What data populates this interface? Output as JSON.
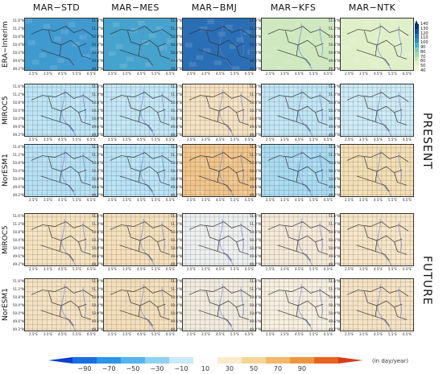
{
  "columns": [
    "MAR−STD",
    "MAR−MES",
    "MAR−BMJ",
    "MAR−KFS",
    "MAR−NTK"
  ],
  "rows": [
    "ERA−Interim",
    "MIROC5",
    "NorESM1",
    "MIROC5",
    "NorESM1"
  ],
  "sections": {
    "present": "PRESENT",
    "future": "FUTURE"
  },
  "lat_labels": [
    "51.6°N",
    "51.2°N",
    "50.8°N",
    "50.4°N",
    "50.0°N",
    "49.6°N",
    "49.2°N"
  ],
  "lon_labels": [
    "2.5°E",
    "3.5°E",
    "4.5°E",
    "5.5°E",
    "6.5°E"
  ],
  "right_colorbar": {
    "ticks": [
      "140",
      "130",
      "120",
      "110",
      "100",
      "90",
      "80",
      "70",
      "60",
      "50",
      "40"
    ],
    "colors": [
      "#08306b",
      "#08519c",
      "#2171b5",
      "#2b8cbe",
      "#41b6c4",
      "#7fcdbb",
      "#a6dba0",
      "#c7e9b4",
      "#e3f4c6",
      "#f7fcd4"
    ]
  },
  "bottom_colorbar": {
    "ticks": [
      "−90",
      "−70",
      "−50",
      "−30",
      "−10",
      "10",
      "30",
      "50",
      "70",
      "90"
    ],
    "colors": [
      "#0b3fcf",
      "#1a6fe0",
      "#2b95e8",
      "#55b4ee",
      "#8fd0f2",
      "#c9eaf7",
      "#ffffff",
      "#fbeacc",
      "#f5d596",
      "#f2b866",
      "#ef9640",
      "#e9631f",
      "#d93a1c"
    ],
    "unit": "(in day/year)"
  },
  "panel_fills": [
    [
      "#3f9ad0",
      "#46a3cd",
      "#2a6fb6",
      "#cfe8bf",
      "#dff0c9"
    ],
    [
      "#bde5f6",
      "#c2e7f6",
      "#f5e2c1",
      "#c1e6f6",
      "#cdebf6"
    ],
    [
      "#b6e1f5",
      "#b9e3f6",
      "#f1c58a",
      "#a9dcf3",
      "#f4dfb4"
    ],
    [
      "#f6e3c0",
      "#f5e0bb",
      "#eef0f0",
      "#f6ead8",
      "#f7e6c6"
    ],
    [
      "#f5e2c1",
      "#f4dfba",
      "#f1ecdf",
      "#f7efe0",
      "#f6e3c3"
    ]
  ]
}
